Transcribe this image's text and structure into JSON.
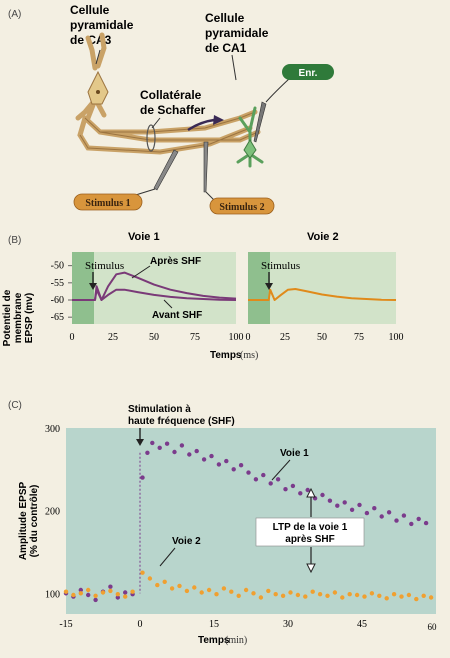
{
  "panel_a": {
    "tag": "(A)",
    "ca3_line1": "Cellule",
    "ca3_line2": "pyramidale",
    "ca3_line3": "de CA3",
    "ca1_line1": "Cellule",
    "ca1_line2": "pyramidale",
    "ca1_line3": "de CA1",
    "schaffer_line1": "Collatérale",
    "schaffer_line2": "de Schaffer",
    "recording": "Enr.",
    "stimulus1": "Stimulus 1",
    "stimulus2": "Stimulus 2"
  },
  "panel_b": {
    "tag": "(B)",
    "ylabel_line1": "Potentiel de",
    "ylabel_line2": "membrane",
    "ylabel_line3": "EPSP (mv)",
    "xlabel": "Temps",
    "xunit": "(ms)",
    "stimulus_label": "Stimulus",
    "after_label": "Après SHF",
    "before_label": "Avant SHF",
    "colors": {
      "trace": "#7a3a78",
      "trace2": "#e08a1a",
      "shade": "#b9d6b8",
      "stim_band": "#7fb380"
    }
  },
  "panel_c": {
    "tag": "(C)",
    "ylabel_line1": "Amplitude EPSP",
    "ylabel_line2": "(% du contrôle)",
    "xlabel": "Temps",
    "xunit": "(min)",
    "annotation_line1": "Stimulation à",
    "annotation_line2": "haute fréquence (SHF)",
    "voie1_label": "Voie 1",
    "voie2_label": "Voie 2",
    "ltp_line1": "LTP de la voie 1",
    "ltp_line2": "après SHF",
    "colors": {
      "voie1": "#7b3b8c",
      "voie2": "#f0a030",
      "bg": "#b7d4cc"
    }
  },
  "chart_data": [
    {
      "type": "line",
      "title": "Voie 1",
      "xlabel": "Temps (ms)",
      "ylabel": "Potentiel de membrane EPSP (mv)",
      "xlim": [
        0,
        100
      ],
      "ylim": [
        -67,
        -46
      ],
      "x_ticks": [
        "0",
        "25",
        "50",
        "75",
        "100"
      ],
      "y_ticks": [
        "-50",
        "-55",
        "-60",
        "-65"
      ],
      "stimulus_x": 15,
      "series": [
        {
          "name": "Après SHF",
          "x": [
            0,
            14,
            15,
            18,
            22,
            27,
            32,
            40,
            50,
            60,
            70,
            80,
            90,
            100
          ],
          "y": [
            -60,
            -60,
            -56,
            -60,
            -56,
            -52.5,
            -52,
            -53.5,
            -55.5,
            -57,
            -58,
            -58.8,
            -59.3,
            -59.6
          ]
        },
        {
          "name": "Avant SHF",
          "x": [
            0,
            14,
            15,
            18,
            22,
            27,
            32,
            40,
            50,
            60,
            70,
            80,
            90,
            100
          ],
          "y": [
            -60,
            -60,
            -57,
            -60,
            -58.5,
            -57,
            -57,
            -57.7,
            -58.5,
            -59.1,
            -59.5,
            -59.7,
            -59.9,
            -60
          ]
        }
      ]
    },
    {
      "type": "line",
      "title": "Voie 2",
      "xlabel": "Temps (ms)",
      "xlim": [
        0,
        100
      ],
      "ylim": [
        -67,
        -46
      ],
      "x_ticks": [
        "0",
        "25",
        "50",
        "75",
        "100"
      ],
      "stimulus_x": 15,
      "series": [
        {
          "name": "",
          "x": [
            0,
            14,
            15,
            18,
            22,
            27,
            32,
            40,
            50,
            60,
            70,
            80,
            90,
            100
          ],
          "y": [
            -60,
            -60,
            -57,
            -60,
            -58.6,
            -57,
            -56.8,
            -57.5,
            -58.4,
            -59,
            -59.5,
            -59.7,
            -59.9,
            -60
          ]
        }
      ]
    },
    {
      "type": "scatter",
      "xlabel": "Temps (min)",
      "ylabel": "Amplitude EPSP (% du contrôle)",
      "xlim": [
        -15,
        60
      ],
      "ylim": [
        75,
        300
      ],
      "x_ticks": [
        "-15",
        "0",
        "15",
        "30",
        "45",
        "60"
      ],
      "y_ticks": [
        "100",
        "200",
        "300"
      ],
      "series": [
        {
          "name": "Voie 1",
          "x": [
            -15,
            -13.5,
            -12,
            -10.5,
            -9,
            -7.5,
            -6,
            -4.5,
            -3,
            -1.5,
            0.5,
            1.5,
            2.5,
            4,
            5.5,
            7,
            8.5,
            10,
            11.5,
            13,
            14.5,
            16,
            17.5,
            19,
            20.5,
            22,
            23.5,
            25,
            26.5,
            28,
            29.5,
            31,
            32.5,
            34,
            35.5,
            37,
            38.5,
            40,
            41.5,
            43,
            44.5,
            46,
            47.5,
            49,
            50.5,
            52,
            53.5,
            55,
            56.5,
            58
          ],
          "y": [
            100,
            96,
            104,
            98,
            92,
            102,
            108,
            95,
            101,
            99,
            240,
            270,
            282,
            276,
            281,
            271,
            279,
            268,
            272,
            262,
            266,
            256,
            260,
            250,
            255,
            246,
            238,
            243,
            233,
            238,
            226,
            230,
            221,
            225,
            215,
            219,
            212,
            206,
            210,
            201,
            207,
            197,
            203,
            193,
            198,
            188,
            194,
            184,
            190,
            185
          ]
        },
        {
          "name": "Voie 2",
          "x": [
            -15,
            -13.5,
            -12,
            -10.5,
            -9,
            -7.5,
            -6,
            -4.5,
            -3,
            -1.5,
            0.5,
            2,
            3.5,
            5,
            6.5,
            8,
            9.5,
            11,
            12.5,
            14,
            15.5,
            17,
            18.5,
            20,
            21.5,
            23,
            24.5,
            26,
            27.5,
            29,
            30.5,
            32,
            33.5,
            35,
            36.5,
            38,
            39.5,
            41,
            42.5,
            44,
            45.5,
            47,
            48.5,
            50,
            51.5,
            53,
            54.5,
            56,
            57.5,
            59
          ],
          "y": [
            102,
            98,
            100,
            104,
            97,
            101,
            103,
            99,
            96,
            102,
            125,
            118,
            110,
            114,
            106,
            109,
            103,
            107,
            101,
            104,
            99,
            106,
            102,
            97,
            104,
            100,
            95,
            103,
            99,
            97,
            101,
            98,
            96,
            102,
            99,
            97,
            101,
            95,
            99,
            98,
            96,
            100,
            97,
            94,
            99,
            96,
            98,
            93,
            97,
            95
          ]
        }
      ]
    }
  ]
}
